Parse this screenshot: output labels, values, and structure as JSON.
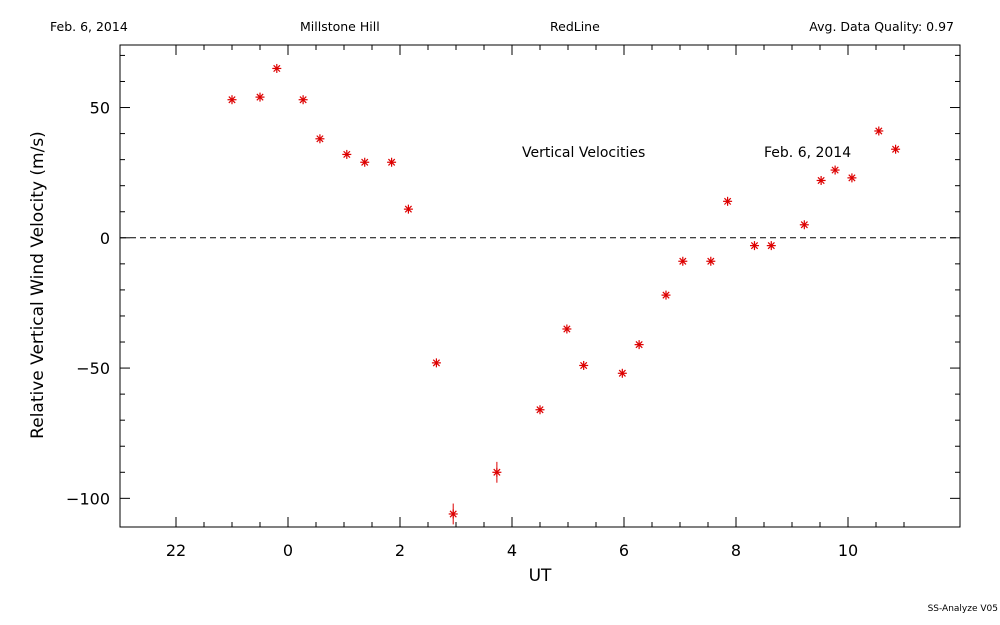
{
  "header": {
    "date": "Feb. 6, 2014",
    "site": "Millstone Hill",
    "line": "RedLine",
    "quality": "Avg. Data Quality: 0.97"
  },
  "footer": "SS-Analyze V05",
  "chart_data": {
    "type": "scatter",
    "xlabel": "UT",
    "ylabel": "Relative Vertical Wind Velocity (m/s)",
    "xlim": [
      -3.0,
      12.0
    ],
    "ylim": [
      -111,
      74
    ],
    "x_ticks": [
      22,
      0,
      2,
      4,
      6,
      8,
      10
    ],
    "y_ticks": [
      50,
      0,
      -50,
      -100
    ],
    "zero_line": "dashed",
    "annotations": [
      "Vertical Velocities",
      "Feb. 6, 2014"
    ],
    "marker_color": "#dd0000",
    "series": [
      {
        "x": [
          -1.0,
          -0.5,
          -0.2,
          0.27,
          0.57,
          1.05,
          1.37,
          1.85,
          2.15,
          2.65,
          2.95,
          3.73,
          4.5,
          4.98,
          5.28,
          5.97,
          6.27,
          6.75,
          7.05,
          7.55,
          7.85,
          8.33,
          8.63,
          9.22,
          9.52,
          9.77,
          10.07,
          10.55,
          10.85
        ],
        "y": [
          53,
          54,
          65,
          53,
          38,
          32,
          29,
          29,
          11,
          -48,
          -106,
          -90,
          -66,
          -35,
          -49,
          -52,
          -41,
          -22,
          -9,
          -9,
          14,
          -3,
          -3,
          5,
          22,
          26,
          23,
          41,
          34
        ],
        "err": [
          0,
          0,
          0,
          0,
          0,
          0,
          0,
          0,
          0,
          0,
          4,
          4,
          0,
          0,
          0,
          0,
          0,
          0,
          0,
          0,
          0,
          0,
          0,
          0,
          0,
          0,
          0,
          0,
          0
        ]
      }
    ]
  }
}
